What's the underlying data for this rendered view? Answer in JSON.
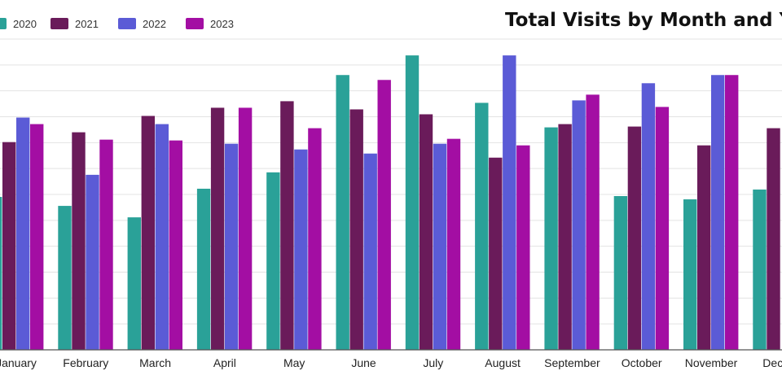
{
  "chart_data": {
    "type": "bar",
    "title": "Total Visits by Month and Y",
    "xlabel": "",
    "ylabel": "",
    "categories": [
      "January",
      "February",
      "March",
      "April",
      "May",
      "June",
      "July",
      "August",
      "September",
      "October",
      "November",
      "Dece"
    ],
    "series": [
      {
        "name": "2020",
        "color": "#2aa198",
        "values": [
          187,
          176,
          162,
          197,
          217,
          336,
          360,
          302,
          272,
          188,
          184,
          196
        ]
      },
      {
        "name": "2021",
        "color": "#6a1b5a",
        "values": [
          254,
          266,
          286,
          296,
          304,
          294,
          288,
          235,
          276,
          273,
          250,
          271
        ]
      },
      {
        "name": "2022",
        "color": "#5b5bd6",
        "values": [
          284,
          214,
          276,
          252,
          245,
          240,
          252,
          360,
          305,
          326,
          336,
          0
        ]
      },
      {
        "name": "2023",
        "color": "#a30ea3",
        "values": [
          276,
          257,
          256,
          296,
          271,
          330,
          258,
          250,
          312,
          297,
          336,
          0
        ]
      }
    ],
    "ylim": [
      0,
      380
    ],
    "grid": true,
    "legend": "top-left"
  }
}
